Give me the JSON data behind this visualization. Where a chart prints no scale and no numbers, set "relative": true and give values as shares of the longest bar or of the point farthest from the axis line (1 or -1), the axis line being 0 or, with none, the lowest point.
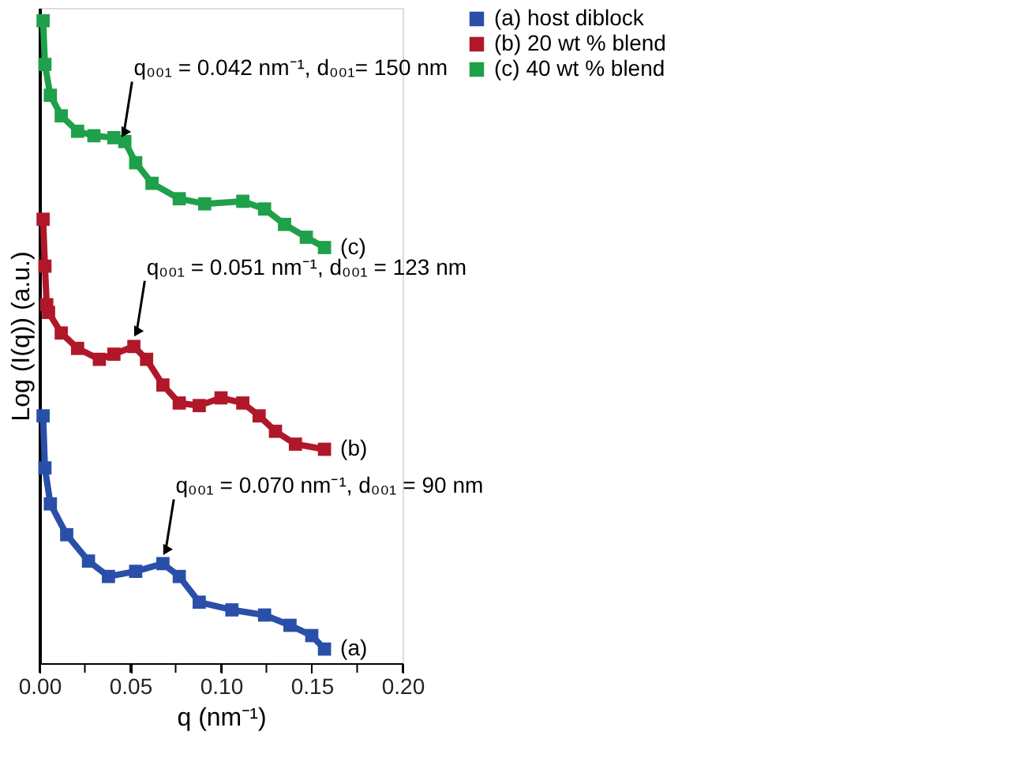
{
  "chart_data": {
    "type": "line",
    "relative": true,
    "xlabel": "q (nm⁻¹)",
    "ylabel": "Log (I(q)) (a.u.)",
    "xlim": [
      0,
      0.2
    ],
    "xticks": [
      {
        "value": 0,
        "label": "0.00"
      },
      {
        "value": 0.025,
        "label": null
      },
      {
        "value": 0.05,
        "label": "0.05"
      },
      {
        "value": 0.075,
        "label": null
      },
      {
        "value": 0.1,
        "label": "0.10"
      },
      {
        "value": 0.125,
        "label": null
      },
      {
        "value": 0.15,
        "label": "0.15"
      },
      {
        "value": 0.175,
        "label": null
      },
      {
        "value": 0.2,
        "label": "0.20"
      }
    ],
    "tick_labels": "x",
    "marker": "square",
    "line_style": "solid",
    "grid": false,
    "legend": "right",
    "series": [
      {
        "name": "(a) host diblock",
        "color": "#2a4fa8",
        "x": [
          0.002,
          0.003,
          0.006,
          0.015,
          0.027,
          0.038,
          0.053,
          0.068,
          0.077,
          0.088,
          0.106,
          0.124,
          0.138,
          0.15,
          0.157
        ],
        "values": [
          0.385,
          0.304,
          0.248,
          0.2,
          0.159,
          0.135,
          0.143,
          0.155,
          0.135,
          0.095,
          0.083,
          0.075,
          0.059,
          0.043,
          0.022
        ]
      },
      {
        "name": "(b) 20 wt % blend",
        "color": "#b0182a",
        "x": [
          0.002,
          0.003,
          0.004,
          0.005,
          0.012,
          0.021,
          0.033,
          0.041,
          0.052,
          0.059,
          0.068,
          0.077,
          0.088,
          0.1,
          0.112,
          0.121,
          0.13,
          0.141,
          0.157
        ],
        "values": [
          0.691,
          0.618,
          0.558,
          0.546,
          0.514,
          0.49,
          0.473,
          0.481,
          0.493,
          0.473,
          0.433,
          0.405,
          0.401,
          0.413,
          0.405,
          0.385,
          0.361,
          0.341,
          0.333
        ]
      },
      {
        "name": "(c) 40 wt % blend",
        "color": "#1fa04a",
        "x": [
          0.002,
          0.003,
          0.006,
          0.012,
          0.021,
          0.03,
          0.041,
          0.047,
          0.053,
          0.062,
          0.077,
          0.091,
          0.112,
          0.124,
          0.135,
          0.147,
          0.157
        ],
        "values": [
          1.0,
          0.932,
          0.884,
          0.852,
          0.828,
          0.821,
          0.818,
          0.812,
          0.779,
          0.747,
          0.723,
          0.715,
          0.719,
          0.707,
          0.683,
          0.663,
          0.647
        ]
      }
    ],
    "annotations": [
      {
        "text": "q₀₀₁ = 0.042 nm⁻¹, d₀₀₁= 150 nm",
        "x": 0.045,
        "y": 0.81
      },
      {
        "text": "q₀₀₁ = 0.051 nm⁻¹, d₀₀₁ = 123 nm",
        "x": 0.052,
        "y": 0.5
      },
      {
        "text": "q₀₀₁ = 0.070 nm⁻¹, d₀₀₁ = 90 nm",
        "x": 0.068,
        "y": 0.16
      },
      {
        "text": "(c)",
        "x": 0.157,
        "y": 0.647
      },
      {
        "text": "(b)",
        "x": 0.157,
        "y": 0.333
      },
      {
        "text": "(a)",
        "x": 0.157,
        "y": 0.022
      }
    ]
  }
}
